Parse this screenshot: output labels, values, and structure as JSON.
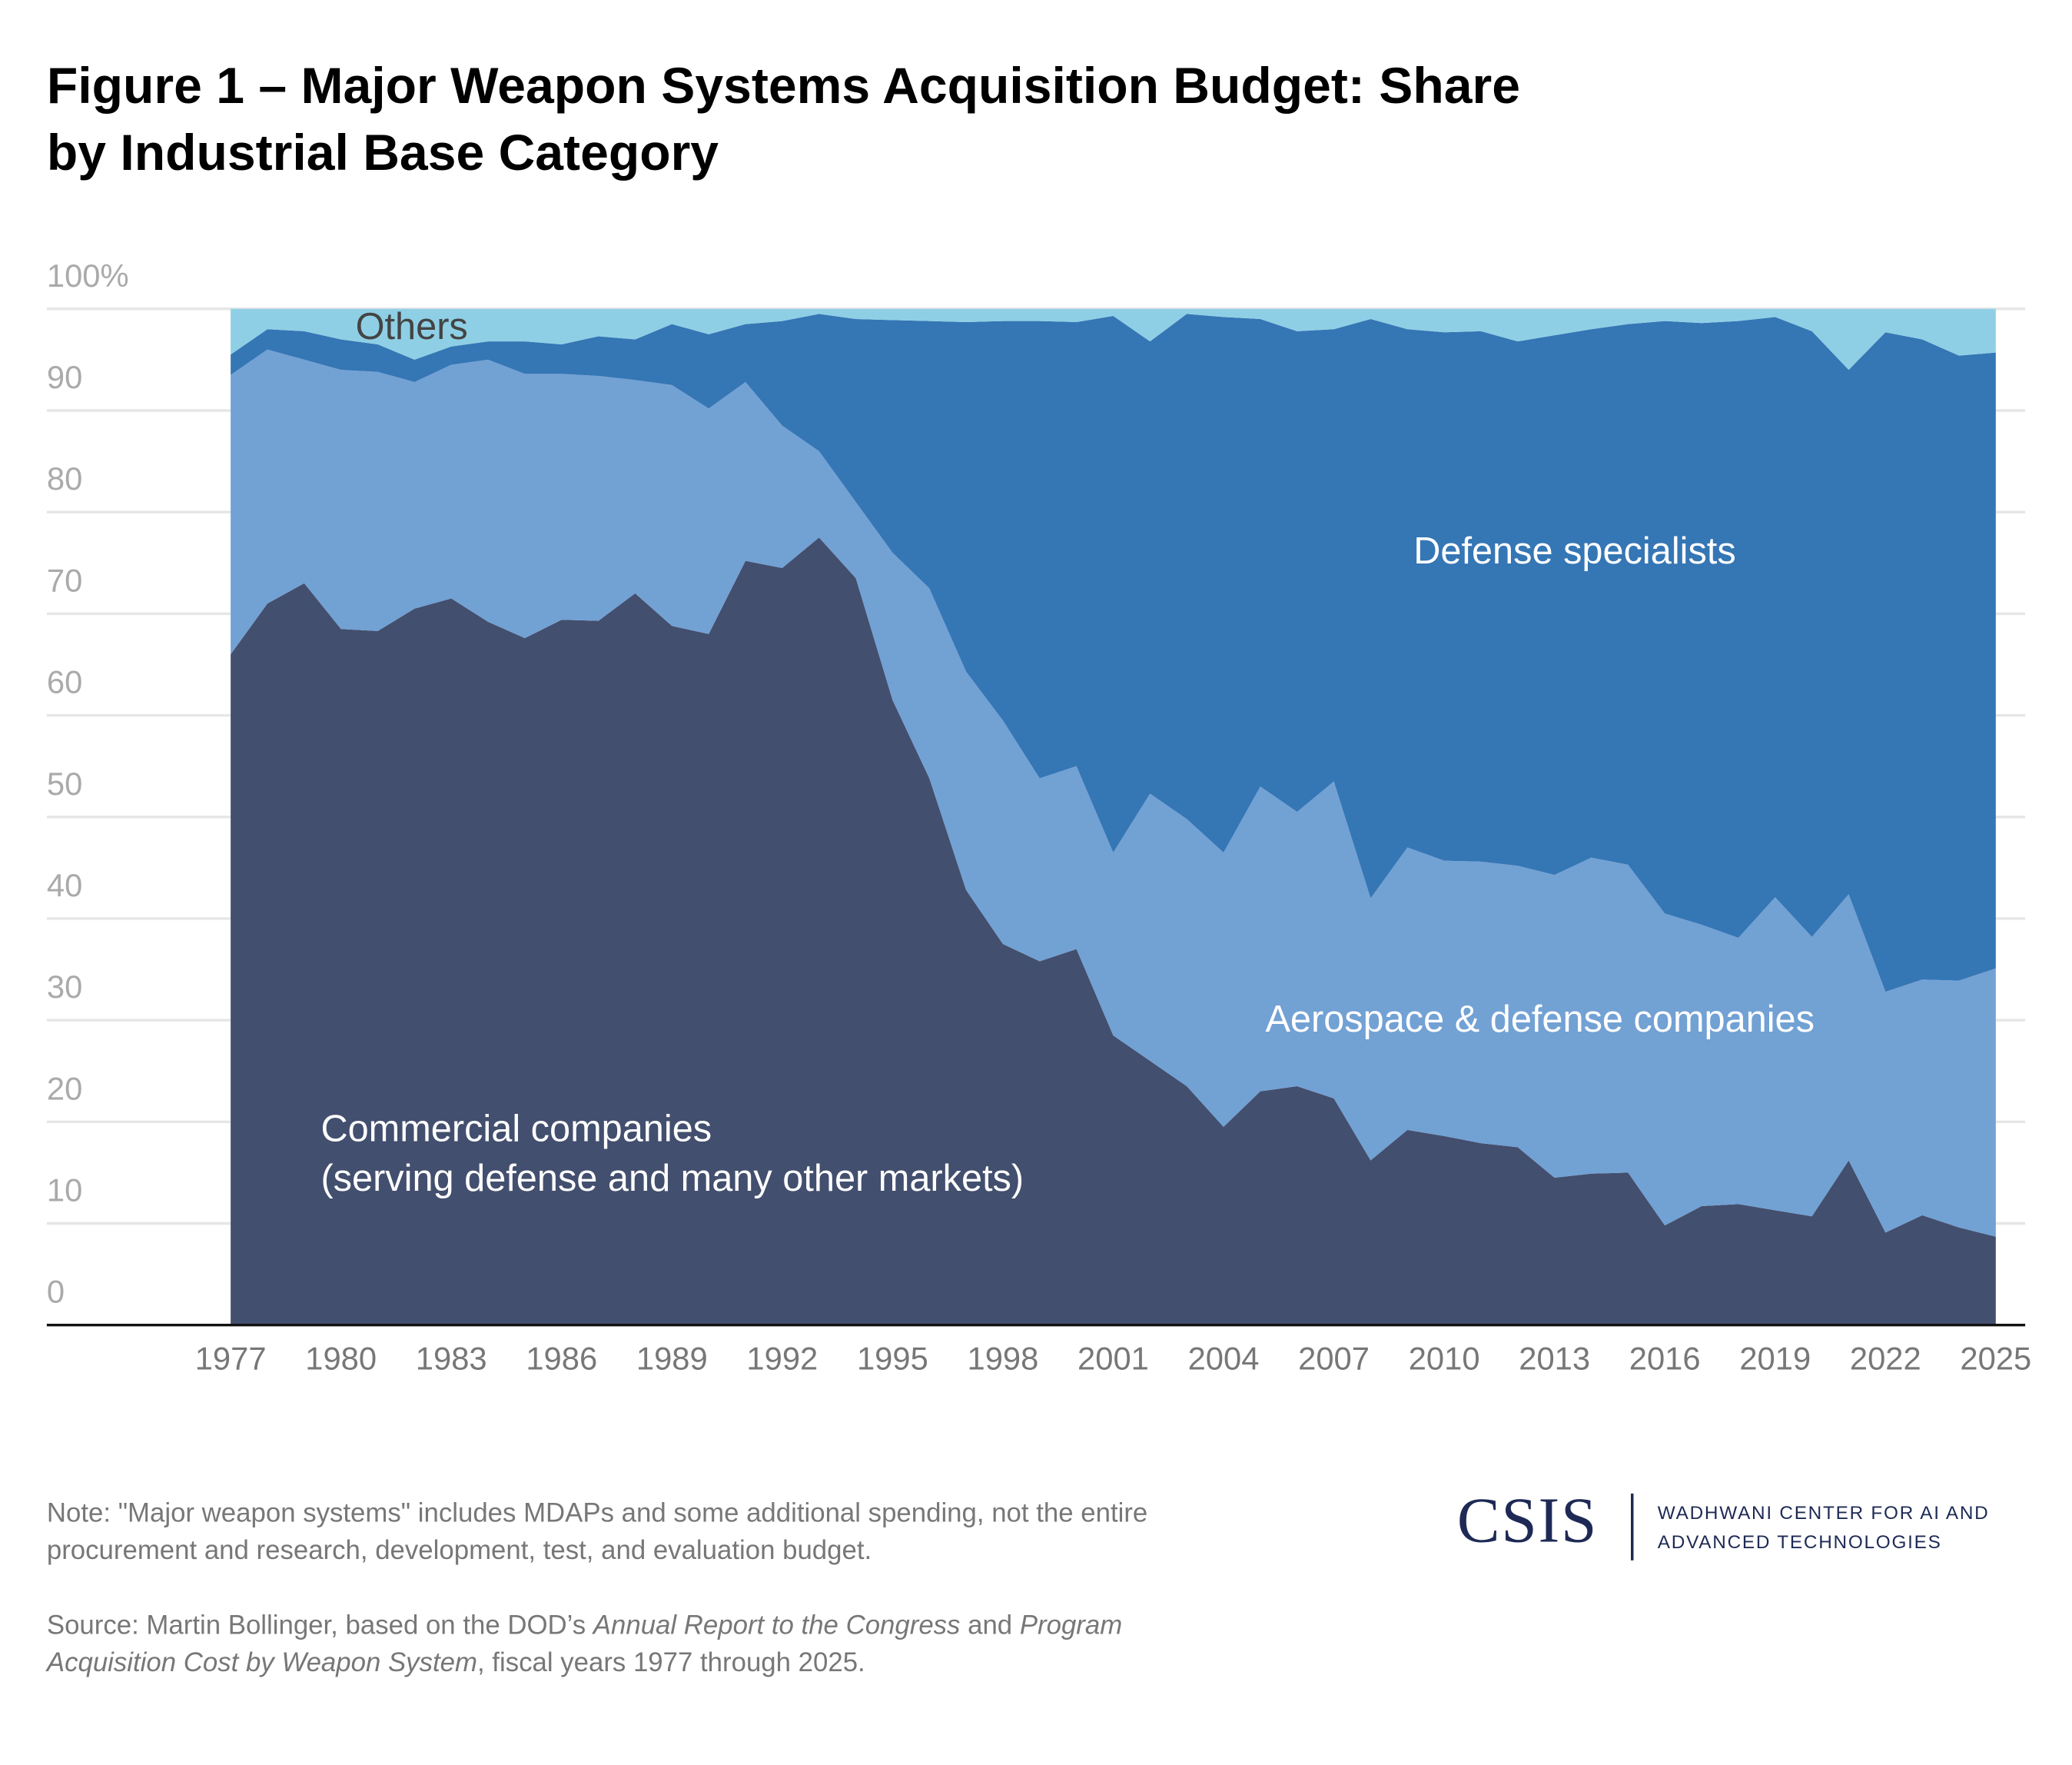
{
  "chart_data": {
    "type": "stacked_area",
    "title": "Figure 1 – Major Weapon Systems Acquisition Budget: Share by Industrial Base Category",
    "x": [
      1977,
      1978,
      1979,
      1980,
      1981,
      1982,
      1983,
      1984,
      1985,
      1986,
      1987,
      1988,
      1989,
      1990,
      1991,
      1992,
      1993,
      1994,
      1995,
      1996,
      1997,
      1998,
      1999,
      2000,
      2001,
      2002,
      2003,
      2004,
      2005,
      2006,
      2007,
      2008,
      2009,
      2010,
      2011,
      2012,
      2013,
      2014,
      2015,
      2016,
      2017,
      2018,
      2019,
      2020,
      2021,
      2022,
      2023,
      2024,
      2025
    ],
    "series": [
      {
        "name": "Commercial companies\n(serving defense and many other markets)",
        "color": "#434f6e",
        "values": [
          66,
          71,
          73,
          68.5,
          68.3,
          70.5,
          71.5,
          69.2,
          67.6,
          69.4,
          69.3,
          72,
          68.8,
          68,
          75.2,
          74.5,
          77.5,
          73.5,
          61.5,
          53.8,
          42.8,
          37.5,
          35.8,
          37,
          28.5,
          26,
          23.5,
          19.5,
          23,
          23.5,
          22.3,
          16.2,
          19.2,
          18.6,
          17.9,
          17.5,
          14.5,
          14.9,
          15,
          9.8,
          11.7,
          11.9,
          11.3,
          10.7,
          16.2,
          9.1,
          10.8,
          9.6,
          8.7
        ]
      },
      {
        "name": "Aerospace & defense companies",
        "color": "#72a1d4",
        "values": [
          27.5,
          25,
          22,
          25.5,
          25.5,
          22.3,
          23,
          25.8,
          26,
          24.2,
          24.1,
          21,
          23.7,
          22.2,
          17.6,
          14,
          8.5,
          7.5,
          14.5,
          18.7,
          21.5,
          22,
          18,
          18,
          18,
          26.3,
          26.3,
          27,
          30,
          27,
          31.2,
          25.8,
          27.8,
          27.1,
          27.7,
          27.7,
          29.8,
          31.1,
          30.3,
          30.7,
          27.7,
          26.2,
          30.8,
          27.5,
          26.2,
          23.7,
          23.2,
          24.3,
          26.4
        ]
      },
      {
        "name": "Defense specialists",
        "color": "#3576b5",
        "values": [
          2,
          2,
          2.8,
          3,
          2.7,
          2.2,
          1.8,
          1.8,
          3.2,
          2.9,
          3.9,
          4,
          6,
          7.3,
          5.7,
          10.3,
          13.5,
          18,
          22.9,
          26.3,
          34.4,
          39.3,
          45,
          43.7,
          52.8,
          44.5,
          49.7,
          52.7,
          46,
          47.3,
          44.5,
          57,
          51,
          52,
          52.2,
          51.6,
          53.1,
          52,
          53.2,
          58.3,
          59.2,
          60.7,
          57.1,
          59.6,
          51.6,
          64.9,
          63,
          61.5,
          60.6
        ]
      },
      {
        "name": "Others",
        "color": "#8ecfe5",
        "values": [
          4.5,
          2,
          2.2,
          3,
          3.5,
          5,
          3.7,
          3.2,
          3.2,
          3.5,
          2.7,
          3,
          1.5,
          2.5,
          1.5,
          1.2,
          0.5,
          1,
          1.1,
          1.2,
          1.3,
          1.2,
          1.2,
          1.3,
          0.7,
          3.2,
          0.5,
          0.8,
          1,
          2.2,
          2,
          1,
          2,
          2.3,
          2.2,
          3.2,
          2.6,
          2,
          1.5,
          1.2,
          1.4,
          1.2,
          0.8,
          2.2,
          6,
          2.3,
          3,
          4.6,
          4.3
        ]
      }
    ],
    "xlim": [
      1972,
      2025.8
    ],
    "xticks": [
      1977,
      1980,
      1983,
      1986,
      1989,
      1992,
      1995,
      1998,
      2001,
      2004,
      2007,
      2010,
      2013,
      2016,
      2019,
      2022,
      2025
    ],
    "ylim": [
      0,
      100
    ],
    "yticks": [
      0,
      10,
      20,
      30,
      40,
      50,
      60,
      70,
      80,
      90,
      {
        "value": 100,
        "label": "100%"
      }
    ],
    "grid": true,
    "note": "Note: \"Major weapon systems\" includes MDAPs and some additional spending, not the entire procurement and research, development, test, and evaluation budget.",
    "source": [
      {
        "text": "Source: Martin Bollinger, based on the DOD’s ",
        "italic": false
      },
      {
        "text": "Annual Report to the Congress",
        "italic": true
      },
      {
        "text": " and ",
        "italic": false
      },
      {
        "text": "Program Acquisition Cost by Weapon System",
        "italic": true
      },
      {
        "text": ", fiscal years 1977 through 2025.",
        "italic": false
      }
    ]
  },
  "logo": {
    "name": "CSIS",
    "center": "WADHWANI CENTER FOR AI AND ADVANCED TECHNOLOGIES"
  }
}
